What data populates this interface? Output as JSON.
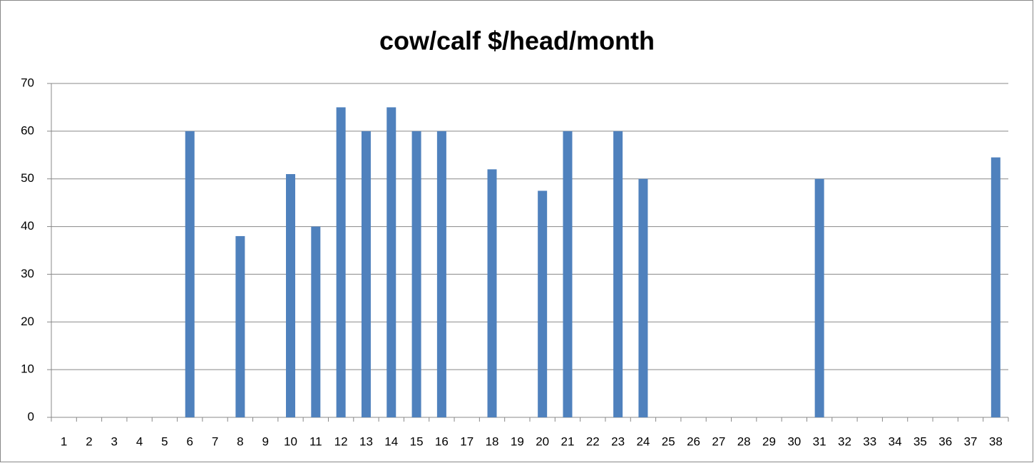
{
  "chart_data": {
    "type": "bar",
    "title": "cow/calf $/head/month",
    "categories": [
      "1",
      "2",
      "3",
      "4",
      "5",
      "6",
      "7",
      "8",
      "9",
      "10",
      "11",
      "12",
      "13",
      "14",
      "15",
      "16",
      "17",
      "18",
      "19",
      "20",
      "21",
      "22",
      "23",
      "24",
      "25",
      "26",
      "27",
      "28",
      "29",
      "30",
      "31",
      "32",
      "33",
      "34",
      "35",
      "36",
      "37",
      "38"
    ],
    "values": [
      0,
      0,
      0,
      0,
      0,
      60,
      0,
      38,
      0,
      51,
      40,
      65,
      60,
      65,
      60,
      60,
      0,
      52,
      0,
      47.5,
      60,
      0,
      60,
      50,
      0,
      0,
      0,
      0,
      0,
      0,
      50,
      0,
      0,
      0,
      0,
      0,
      0,
      54.5
    ],
    "color": "#4f81bd",
    "ylim": [
      0,
      70
    ],
    "yticks": [
      0,
      10,
      20,
      30,
      40,
      50,
      60,
      70
    ],
    "grid": true
  }
}
